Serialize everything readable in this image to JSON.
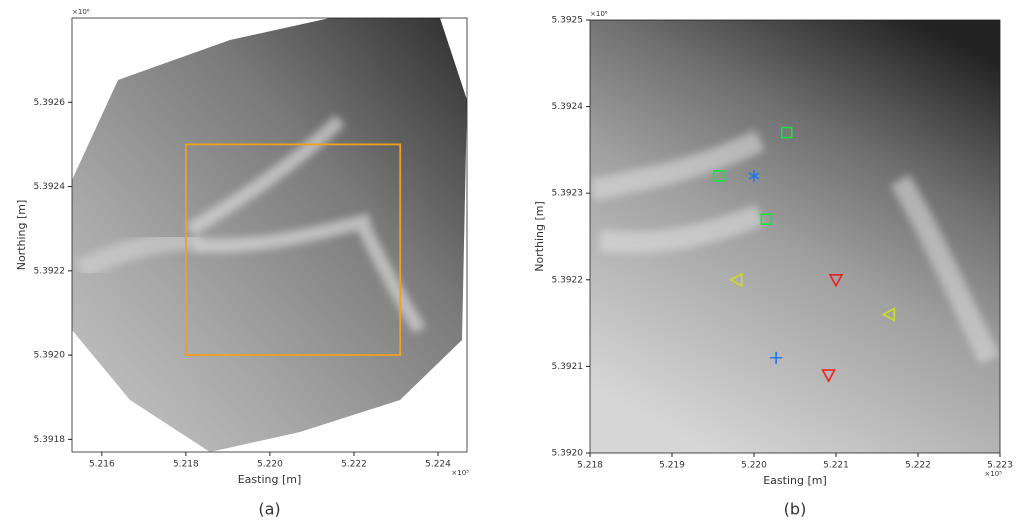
{
  "chart_data": [
    {
      "type": "map",
      "xlabel": "Easting [m]",
      "ylabel": "Northing [m]",
      "x_multiplier": "×10⁵",
      "y_multiplier": "×10⁶",
      "caption": "(a)",
      "xlim": [
        5.21529,
        5.22469
      ],
      "ylim": [
        5.39177,
        5.3928
      ],
      "xticks": [
        5.216,
        5.218,
        {
          "value": 5.22,
          "label": "5.220"
        },
        5.222,
        5.224
      ],
      "yticks": [
        {
          "value": 5.3918,
          "label": "5.3918"
        },
        {
          "value": 5.392,
          "label": "5.3920"
        },
        5.3922,
        5.3924,
        5.3926
      ],
      "rect_x": [
        5.218,
        5.2231
      ],
      "rect_y": [
        5.392,
        5.3925
      ],
      "rect_color": "#f0a020"
    },
    {
      "type": "scatter",
      "xlabel": "Easting [m]",
      "ylabel": "Northing [m]",
      "x_multiplier": "×10⁵",
      "y_multiplier": "×10⁶",
      "caption": "(b)",
      "xlim": [
        5.218,
        5.223
      ],
      "ylim": [
        5.392,
        5.3925
      ],
      "xticks": [
        5.218,
        5.219,
        {
          "value": 5.22,
          "label": "5.220"
        },
        5.221,
        5.222,
        5.223
      ],
      "yticks": [
        {
          "value": 5.392,
          "label": "5.3920"
        },
        5.3921,
        5.3922,
        5.3923,
        5.3924,
        5.3925
      ],
      "series": [
        {
          "color": "#22dd44",
          "marker": "square",
          "x": [
            5.21957,
            5.2204,
            5.22015
          ],
          "values": [
            5.39232,
            5.39237,
            5.39227
          ]
        },
        {
          "color": "#2277ee",
          "marker": "plus",
          "x": [
            5.22027
          ],
          "values": [
            5.39211
          ]
        },
        {
          "color": "#2277ee",
          "marker": "star",
          "x": [
            5.22
          ],
          "values": [
            5.39232
          ]
        },
        {
          "color": "#ee2222",
          "marker": "triangle-down",
          "x": [
            5.221,
            5.22091
          ],
          "values": [
            5.3922,
            5.39209
          ]
        },
        {
          "color": "#ccdd22",
          "marker": "triangle-left",
          "x": [
            5.21979,
            5.22165
          ],
          "values": [
            5.3922,
            5.39216
          ]
        }
      ]
    }
  ]
}
